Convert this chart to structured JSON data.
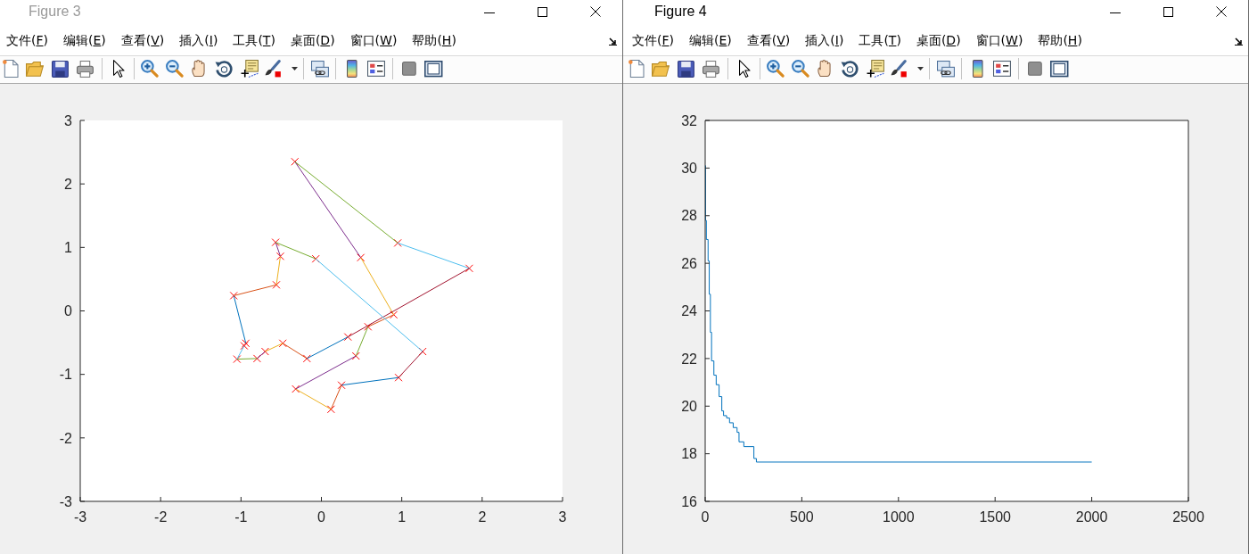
{
  "chart_data": [
    {
      "type": "line",
      "title": "Figure 3",
      "annotations": [
        "文件(F)",
        "编辑(E)",
        "查看(V)",
        "插入(I)",
        "工具(T)",
        "桌面(D)",
        "窗口(W)",
        "帮助(H)"
      ],
      "xlim": [
        -3,
        3
      ],
      "xticks": [
        -3,
        -2,
        -1,
        0,
        1,
        2,
        3
      ],
      "ylim": [
        -3,
        3
      ],
      "yticks": [
        -3,
        -2,
        -1,
        0,
        1,
        2,
        3
      ],
      "series": [
        {
          "type": "scatter",
          "color": "#ff0000",
          "marker": "cross",
          "x": [
            0.58,
            0.9,
            0.49,
            -0.33,
            0.95,
            1.84,
            0.33,
            -0.18,
            -0.48,
            -0.7,
            -0.8,
            -1.05,
            -0.96,
            -0.94,
            -1.09,
            -0.56,
            -0.51,
            -0.57,
            -0.07,
            1.26,
            0.96,
            0.25,
            0.12,
            -0.32,
            0.43
          ],
          "values": [
            -0.25,
            -0.06,
            0.84,
            2.35,
            1.07,
            0.67,
            -0.41,
            -0.75,
            -0.51,
            -0.64,
            -0.75,
            -0.76,
            -0.55,
            -0.51,
            0.24,
            0.41,
            0.86,
            1.08,
            0.82,
            -0.64,
            -1.05,
            -1.17,
            -1.55,
            -1.23,
            -0.71
          ]
        },
        {
          "color": "#d95319",
          "x": [
            0.58,
            0.9
          ],
          "values": [
            -0.25,
            -0.06
          ]
        },
        {
          "color": "#edb120",
          "x": [
            0.9,
            0.49
          ],
          "values": [
            -0.06,
            0.84
          ]
        },
        {
          "color": "#7e2f8e",
          "x": [
            0.49,
            -0.33
          ],
          "values": [
            0.84,
            2.35
          ]
        },
        {
          "color": "#77ac30",
          "x": [
            -0.33,
            0.95
          ],
          "values": [
            2.35,
            1.07
          ]
        },
        {
          "color": "#4dbeee",
          "x": [
            0.95,
            1.84
          ],
          "values": [
            1.07,
            0.67
          ]
        },
        {
          "color": "#a2142f",
          "x": [
            1.84,
            0.33
          ],
          "values": [
            0.67,
            -0.41
          ]
        },
        {
          "color": "#0072bd",
          "x": [
            0.33,
            -0.18
          ],
          "values": [
            -0.41,
            -0.75
          ]
        },
        {
          "color": "#d95319",
          "x": [
            -0.18,
            -0.48
          ],
          "values": [
            -0.75,
            -0.51
          ]
        },
        {
          "color": "#edb120",
          "x": [
            -0.48,
            -0.7
          ],
          "values": [
            -0.51,
            -0.64
          ]
        },
        {
          "color": "#7e2f8e",
          "x": [
            -0.7,
            -0.8
          ],
          "values": [
            -0.64,
            -0.75
          ]
        },
        {
          "color": "#77ac30",
          "x": [
            -0.8,
            -1.05
          ],
          "values": [
            -0.75,
            -0.76
          ]
        },
        {
          "color": "#4dbeee",
          "x": [
            -1.05,
            -0.96
          ],
          "values": [
            -0.76,
            -0.55
          ]
        },
        {
          "color": "#0072bd",
          "x": [
            -0.94,
            -1.09
          ],
          "values": [
            -0.51,
            0.24
          ]
        },
        {
          "color": "#d95319",
          "x": [
            -1.09,
            -0.56
          ],
          "values": [
            0.24,
            0.41
          ]
        },
        {
          "color": "#edb120",
          "x": [
            -0.56,
            -0.51
          ],
          "values": [
            0.41,
            0.86
          ]
        },
        {
          "color": "#7e2f8e",
          "x": [
            -0.51,
            -0.57
          ],
          "values": [
            0.86,
            1.08
          ]
        },
        {
          "color": "#77ac30",
          "x": [
            -0.57,
            -0.07
          ],
          "values": [
            1.08,
            0.82
          ]
        },
        {
          "color": "#4dbeee",
          "x": [
            -0.07,
            1.26
          ],
          "values": [
            0.82,
            -0.64
          ]
        },
        {
          "color": "#a2142f",
          "x": [
            1.26,
            0.96
          ],
          "values": [
            -0.64,
            -1.05
          ]
        },
        {
          "color": "#0072bd",
          "x": [
            0.96,
            0.25
          ],
          "values": [
            -1.05,
            -1.17
          ]
        },
        {
          "color": "#d95319",
          "x": [
            0.25,
            0.12
          ],
          "values": [
            -1.17,
            -1.55
          ]
        },
        {
          "color": "#edb120",
          "x": [
            0.12,
            -0.32
          ],
          "values": [
            -1.55,
            -1.23
          ]
        },
        {
          "color": "#7e2f8e",
          "x": [
            -0.32,
            0.43
          ],
          "values": [
            -1.23,
            -0.71
          ]
        },
        {
          "color": "#77ac30",
          "x": [
            0.43,
            0.58
          ],
          "values": [
            -0.71,
            -0.25
          ]
        }
      ]
    },
    {
      "type": "step",
      "title": "Figure 4",
      "annotations": [
        "文件(F)",
        "编辑(E)",
        "查看(V)",
        "插入(I)",
        "工具(T)",
        "桌面(D)",
        "窗口(W)",
        "帮助(H)"
      ],
      "xlim": [
        0,
        2500
      ],
      "xticks": [
        0,
        500,
        1000,
        1500,
        2000,
        2500
      ],
      "ylim": [
        16,
        32
      ],
      "yticks": [
        16,
        18,
        20,
        22,
        24,
        26,
        28,
        30,
        32
      ],
      "x": [
        0,
        2,
        6,
        15,
        21,
        27,
        33,
        45,
        57,
        72,
        86,
        95,
        111,
        126,
        145,
        165,
        175,
        200,
        252,
        265,
        2000
      ],
      "series": [
        {
          "color": "#0072bd",
          "values": [
            30.1,
            27.8,
            27.0,
            26.1,
            24.7,
            23.1,
            21.9,
            21.3,
            20.9,
            20.4,
            19.8,
            19.6,
            19.5,
            19.3,
            19.1,
            18.9,
            18.5,
            18.3,
            17.8,
            17.65,
            17.65
          ]
        }
      ]
    }
  ]
}
